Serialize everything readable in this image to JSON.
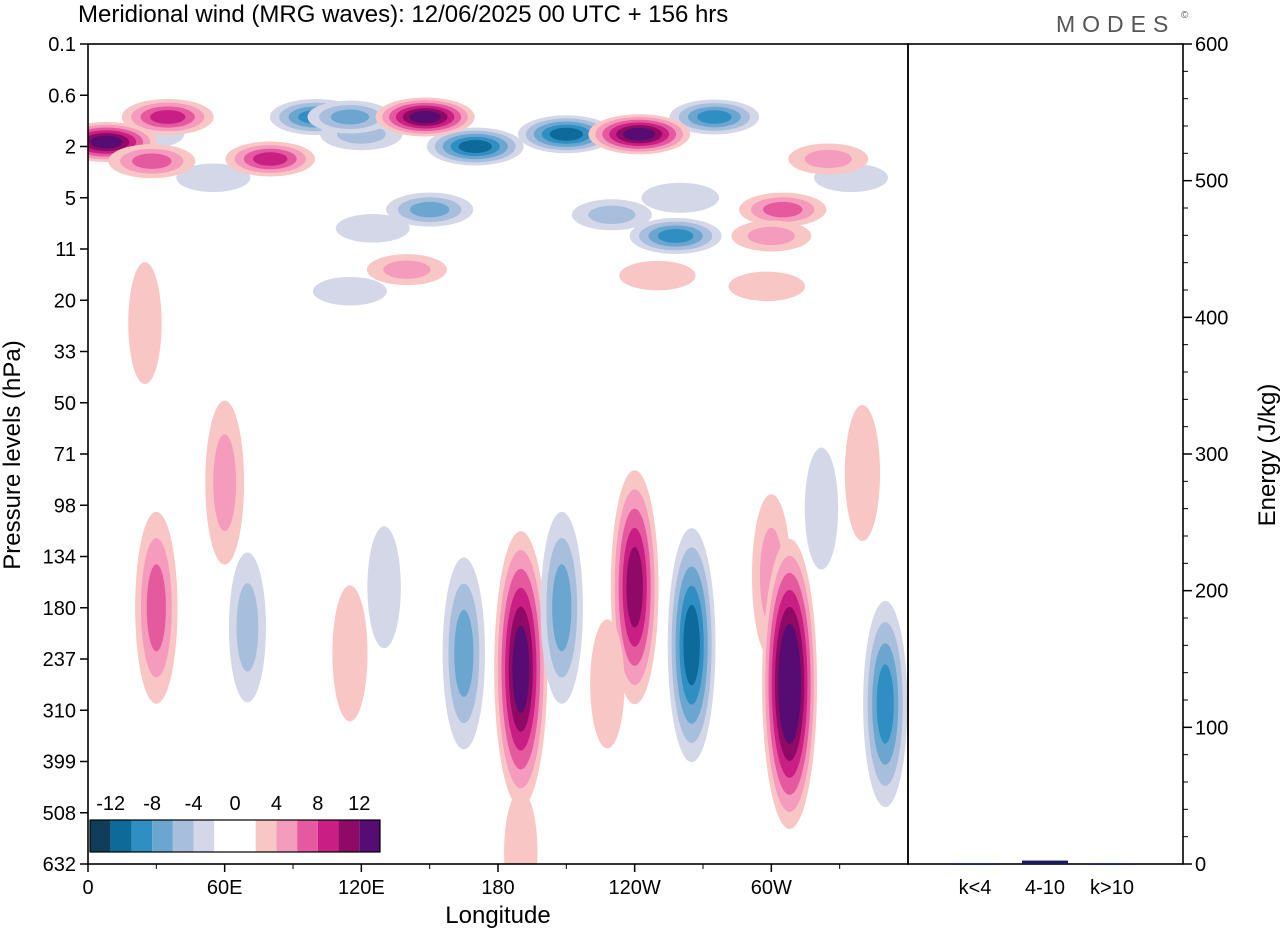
{
  "chart_data": {
    "type": "heatmap",
    "title": "Meridional wind (MRG waves):  12/06/2025  00 UTC  + 156 hrs",
    "brand": "MODES",
    "brand_mark": "©",
    "xlabel": "Longitude",
    "ylabel": "Pressure levels (hPa)",
    "x_ticks": [
      "0",
      "60E",
      "120E",
      "180",
      "120W",
      "60W"
    ],
    "y_ticks": [
      "0.1",
      "0.6",
      "2",
      "5",
      "11",
      "20",
      "33",
      "50",
      "71",
      "98",
      "134",
      "180",
      "237",
      "310",
      "399",
      "508",
      "632"
    ],
    "legend": {
      "position": "bottom-left",
      "labels": [
        "-12",
        "-8",
        "-4",
        "0",
        "4",
        "8",
        "12"
      ],
      "colors": [
        "#0f3d5a",
        "#0d6a9b",
        "#2f8fc2",
        "#6aa6cf",
        "#a8bedd",
        "#d3d7e8",
        "#ffffff",
        "#ffffff",
        "#f9c6c6",
        "#f59bbd",
        "#e55a9f",
        "#c91e84",
        "#8f0a66",
        "#560c72"
      ]
    },
    "anomalies": [
      {
        "lon": 26,
        "lev": 1.5,
        "value": -2.5
      },
      {
        "lon": 100,
        "lev": 1.0,
        "value": -10
      },
      {
        "lon": 120,
        "lev": 1.5,
        "value": -6
      },
      {
        "lon": 170,
        "lev": 2.0,
        "value": -12
      },
      {
        "lon": 210,
        "lev": 1.5,
        "value": -12
      },
      {
        "lon": 275,
        "lev": 1.0,
        "value": -9
      },
      {
        "lon": 260,
        "lev": 5.0,
        "value": -4
      },
      {
        "lon": 150,
        "lev": 6.0,
        "value": -8
      },
      {
        "lon": 230,
        "lev": 6.5,
        "value": -5
      },
      {
        "lon": 258,
        "lev": 9.0,
        "value": -10
      },
      {
        "lon": 125,
        "lev": 8.0,
        "value": -2.5
      },
      {
        "lon": 335,
        "lev": 3.5,
        "value": -2.5
      },
      {
        "lon": 55,
        "lev": 3.5,
        "value": -2.5
      },
      {
        "lon": 115,
        "lev": 1.0,
        "value": -7
      },
      {
        "lon": 35,
        "lev": 1.0,
        "value": 10
      },
      {
        "lon": 8,
        "lev": 1.8,
        "value": 14
      },
      {
        "lon": 28,
        "lev": 2.6,
        "value": 8
      },
      {
        "lon": 80,
        "lev": 2.5,
        "value": 9
      },
      {
        "lon": 148,
        "lev": 1.0,
        "value": 13
      },
      {
        "lon": 242,
        "lev": 1.5,
        "value": 14
      },
      {
        "lon": 325,
        "lev": 2.5,
        "value": 5
      },
      {
        "lon": 305,
        "lev": 6.0,
        "value": 8
      },
      {
        "lon": 300,
        "lev": 9.0,
        "value": 5
      },
      {
        "lon": 140,
        "lev": 14.0,
        "value": 5
      },
      {
        "lon": 250,
        "lev": 15.0,
        "value": 3.5
      },
      {
        "lon": 298,
        "lev": 17.0,
        "value": 3.5
      },
      {
        "lon": 25,
        "lev": 25.0,
        "value": 3
      },
      {
        "lon": 115,
        "lev": 18.0,
        "value": -2.5
      },
      {
        "lon": 30,
        "lev": 180.0,
        "value": 8
      },
      {
        "lon": 60,
        "lev": 85.0,
        "value": 6
      },
      {
        "lon": 70,
        "lev": 200.0,
        "value": -5
      },
      {
        "lon": 115,
        "lev": 230.0,
        "value": 4
      },
      {
        "lon": 130,
        "lev": 160.0,
        "value": -3
      },
      {
        "lon": 165,
        "lev": 230.0,
        "value": -8
      },
      {
        "lon": 190,
        "lev": 250.0,
        "value": 14
      },
      {
        "lon": 208,
        "lev": 180.0,
        "value": -8
      },
      {
        "lon": 240,
        "lev": 160.0,
        "value": 11
      },
      {
        "lon": 265,
        "lev": 220.0,
        "value": -11
      },
      {
        "lon": 300,
        "lev": 150.0,
        "value": 6
      },
      {
        "lon": 308,
        "lev": 270.0,
        "value": 15
      },
      {
        "lon": 350,
        "lev": 300.0,
        "value": -9
      },
      {
        "lon": 322,
        "lev": 100.0,
        "value": -3
      },
      {
        "lon": 340,
        "lev": 80.0,
        "value": 4
      },
      {
        "lon": 190,
        "lev": 600.0,
        "value": 3
      },
      {
        "lon": 228,
        "lev": 270.0,
        "value": 3.5
      }
    ],
    "energy": {
      "ylabel": "Energy (J/kg)",
      "ylim": [
        0,
        600
      ],
      "y_ticks": [
        "0",
        "100",
        "200",
        "300",
        "400",
        "500",
        "600"
      ],
      "categories": [
        "k<4",
        "4-10",
        "k>10"
      ],
      "values": [
        0.5,
        2.5,
        0.5
      ],
      "bar_color": "#1a1a5e"
    }
  }
}
